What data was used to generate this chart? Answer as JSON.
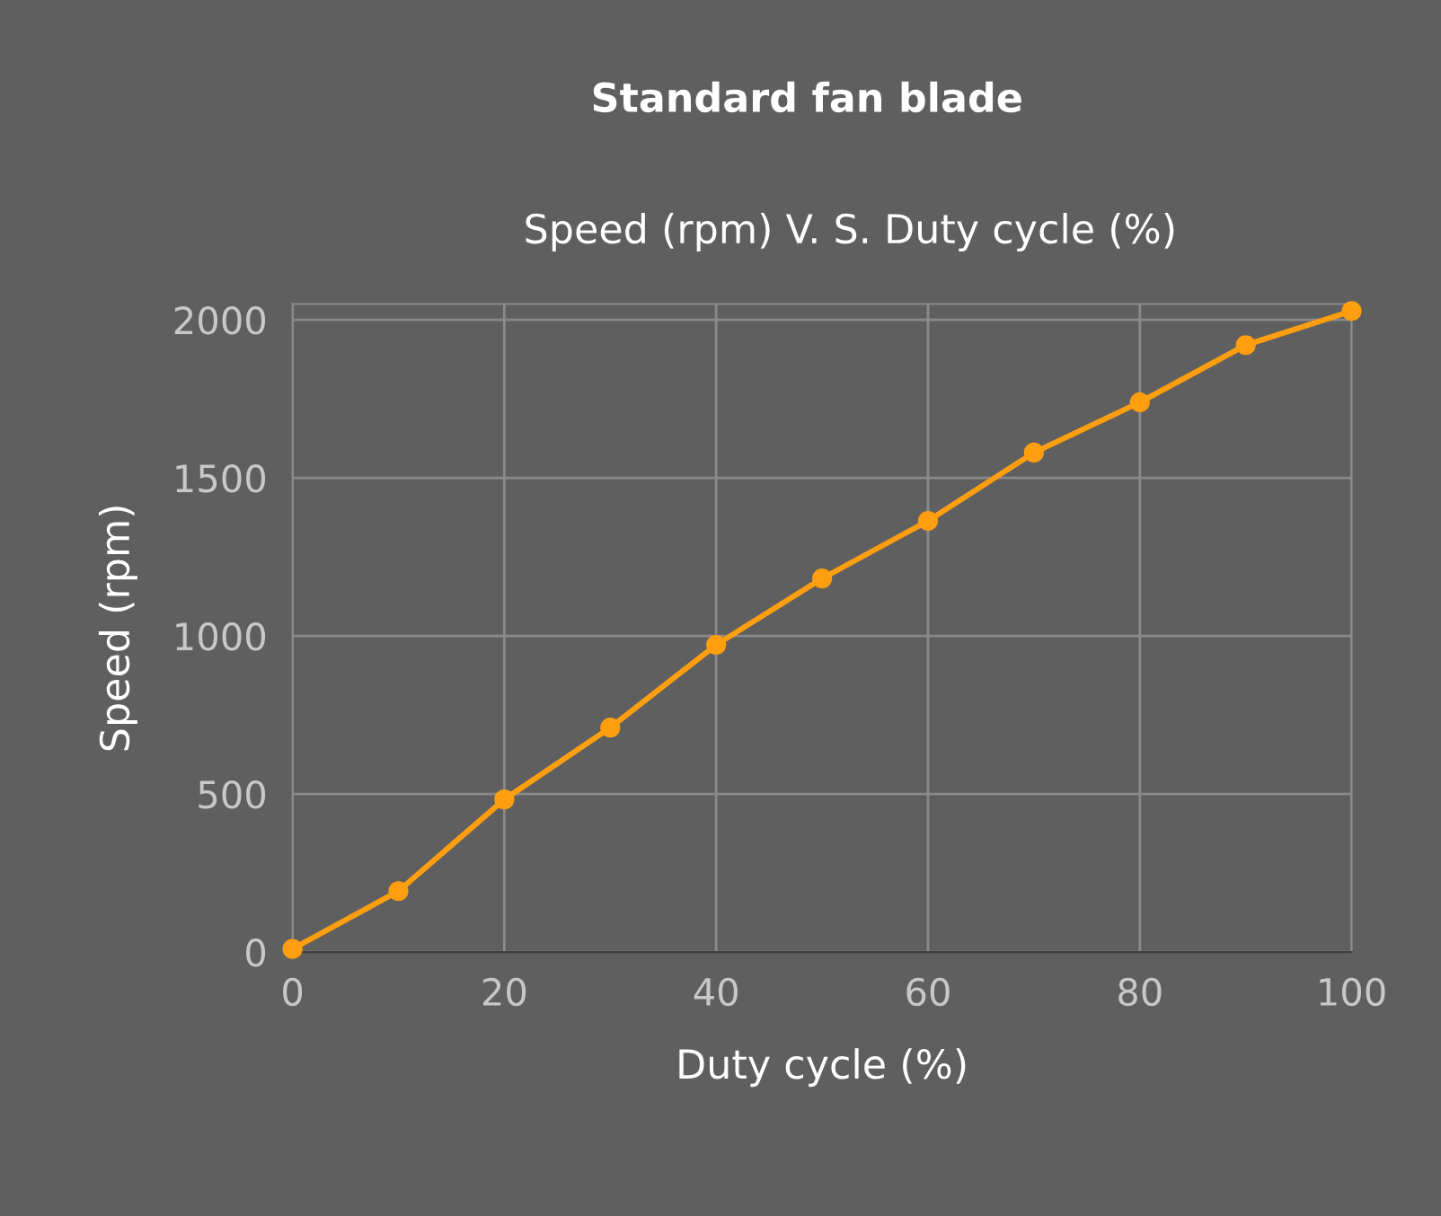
{
  "chart_data": {
    "type": "line",
    "title": "Standard fan blade",
    "subtitle": "Speed (rpm) V. S. Duty cycle (%)",
    "xlabel": "Duty cycle (%)",
    "ylabel": "Speed (rpm)",
    "x": [
      0,
      10,
      20,
      30,
      40,
      50,
      60,
      70,
      80,
      90,
      100
    ],
    "series": [
      {
        "color": "#ff9e0f",
        "values": [
          10,
          193,
          483,
          710,
          972,
          1182,
          1364,
          1580,
          1739,
          1920,
          2028
        ]
      }
    ],
    "xlim": [
      0,
      100
    ],
    "xticks": [
      0,
      20,
      40,
      60,
      80,
      100
    ],
    "ylim": [
      0,
      2050
    ],
    "yticks": [
      0,
      500,
      1000,
      1500,
      2000
    ],
    "grid": true,
    "legend": false,
    "marker": "circle",
    "line_style": "solid"
  }
}
